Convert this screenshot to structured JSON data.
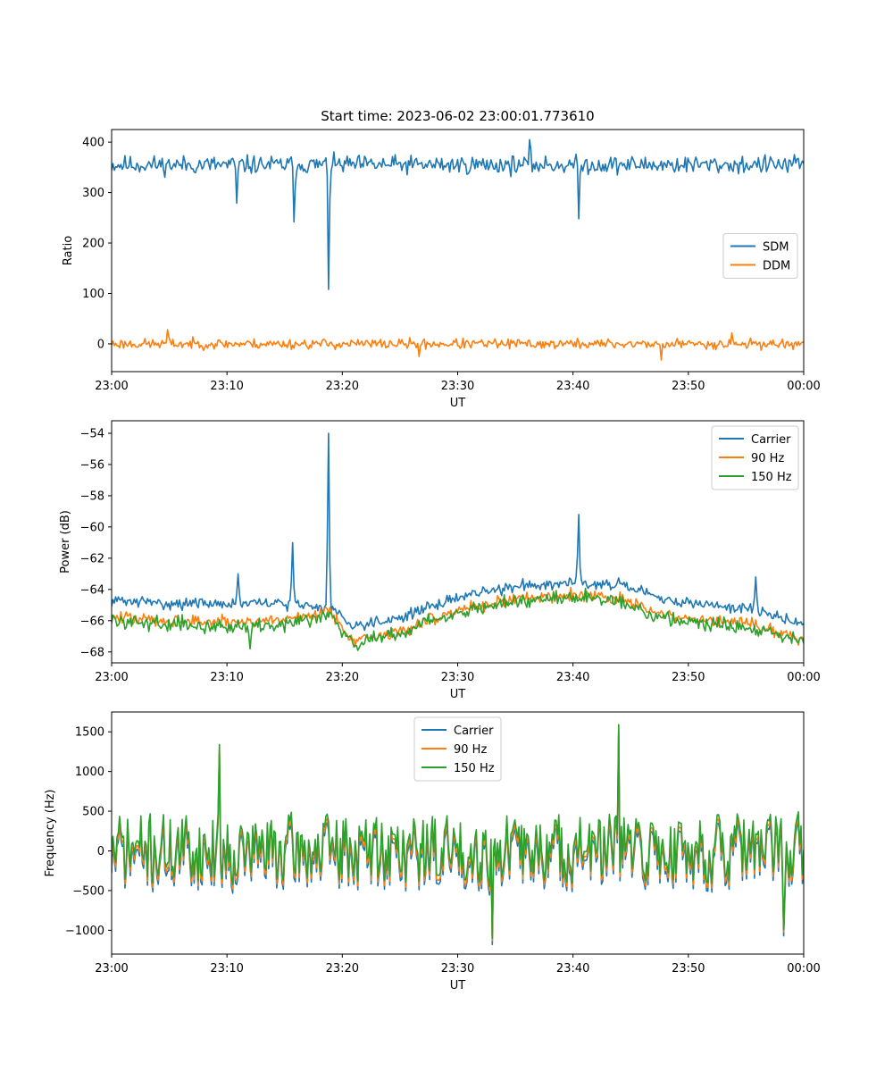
{
  "figure": {
    "title": "Start time: 2023-06-02 23:00:01.773610"
  },
  "colors": {
    "blue": "#1f77b4",
    "orange": "#ff7f0e",
    "green": "#2ca02c",
    "legend_edge": "#cccccc"
  },
  "chart_data": [
    {
      "type": "line",
      "title": "Start time: 2023-06-02 23:00:01.773610",
      "xlabel": "UT",
      "ylabel": "Ratio",
      "x_unit": "minutes after 23:00",
      "xlim": [
        0,
        60
      ],
      "ylim": [
        -55,
        425
      ],
      "x_ticks": [
        0,
        10,
        20,
        30,
        40,
        50,
        60
      ],
      "x_tick_labels": [
        "23:00",
        "23:10",
        "23:20",
        "23:30",
        "23:40",
        "23:50",
        "00:00"
      ],
      "y_ticks": [
        0,
        100,
        200,
        300,
        400
      ],
      "y_tick_labels": [
        "0",
        "100",
        "200",
        "300",
        "400"
      ],
      "legend": "center-right",
      "grid": false,
      "series": [
        {
          "name": "SDM",
          "color": "#1f77b4",
          "baseline": 355,
          "noise": 18,
          "seed": 11,
          "events": [
            {
              "x": 10.9,
              "y": 279
            },
            {
              "x": 15.8,
              "y": 242
            },
            {
              "x": 18.8,
              "y": 108
            },
            {
              "x": 36.2,
              "y": 405
            },
            {
              "x": 40.5,
              "y": 248
            }
          ]
        },
        {
          "name": "DDM",
          "color": "#ff7f0e",
          "baseline": 0,
          "noise": 10,
          "seed": 23,
          "events": [
            {
              "x": 4.8,
              "y": 28
            },
            {
              "x": 26.6,
              "y": -25
            },
            {
              "x": 47.6,
              "y": -32
            },
            {
              "x": 53.8,
              "y": 22
            }
          ]
        }
      ]
    },
    {
      "type": "line",
      "xlabel": "UT",
      "ylabel": "Power (dB)",
      "x_unit": "minutes after 23:00",
      "xlim": [
        0,
        60
      ],
      "ylim": [
        -68.7,
        -53.2
      ],
      "x_ticks": [
        0,
        10,
        20,
        30,
        40,
        50,
        60
      ],
      "x_tick_labels": [
        "23:00",
        "23:10",
        "23:20",
        "23:30",
        "23:40",
        "23:50",
        "00:00"
      ],
      "y_ticks": [
        -68,
        -66,
        -64,
        -62,
        -60,
        -58,
        -56,
        -54
      ],
      "y_tick_labels": [
        "−68",
        "−66",
        "−64",
        "−62",
        "−60",
        "−58",
        "−56",
        "−54"
      ],
      "legend": "top-right",
      "grid": false,
      "series": [
        {
          "name": "Carrier",
          "color": "#1f77b4",
          "noise": 0.35,
          "seed": 31,
          "trend": [
            [
              0,
              -64.7
            ],
            [
              5,
              -64.9
            ],
            [
              10,
              -64.9
            ],
            [
              15,
              -64.9
            ],
            [
              19,
              -65.2
            ],
            [
              21,
              -66.3
            ],
            [
              25,
              -65.8
            ],
            [
              30,
              -64.5
            ],
            [
              35,
              -63.8
            ],
            [
              40,
              -63.5
            ],
            [
              44,
              -63.7
            ],
            [
              48,
              -64.7
            ],
            [
              52,
              -65.0
            ],
            [
              56,
              -65.3
            ],
            [
              60,
              -66.3
            ]
          ],
          "events": [
            {
              "x": 11.0,
              "y": -63.0
            },
            {
              "x": 15.7,
              "y": -61.0
            },
            {
              "x": 18.8,
              "y": -54.0
            },
            {
              "x": 40.5,
              "y": -59.2
            },
            {
              "x": 55.8,
              "y": -63.2
            }
          ]
        },
        {
          "name": "90 Hz",
          "color": "#ff7f0e",
          "noise": 0.4,
          "seed": 47,
          "trend": [
            [
              0,
              -65.8
            ],
            [
              5,
              -66.0
            ],
            [
              10,
              -66.1
            ],
            [
              15,
              -65.9
            ],
            [
              19,
              -65.4
            ],
            [
              21,
              -67.3
            ],
            [
              25,
              -66.7
            ],
            [
              30,
              -65.3
            ],
            [
              35,
              -64.6
            ],
            [
              40,
              -64.3
            ],
            [
              44,
              -64.6
            ],
            [
              48,
              -65.7
            ],
            [
              52,
              -66.0
            ],
            [
              56,
              -66.3
            ],
            [
              60,
              -67.2
            ]
          ],
          "events": []
        },
        {
          "name": "150 Hz",
          "color": "#2ca02c",
          "noise": 0.45,
          "seed": 59,
          "trend": [
            [
              0,
              -66.0
            ],
            [
              5,
              -66.2
            ],
            [
              10,
              -66.4
            ],
            [
              15,
              -66.2
            ],
            [
              19,
              -65.6
            ],
            [
              21,
              -67.4
            ],
            [
              25,
              -66.8
            ],
            [
              30,
              -65.4
            ],
            [
              35,
              -64.8
            ],
            [
              40,
              -64.4
            ],
            [
              44,
              -64.8
            ],
            [
              48,
              -65.9
            ],
            [
              52,
              -66.2
            ],
            [
              56,
              -66.5
            ],
            [
              60,
              -67.3
            ]
          ],
          "events": [
            {
              "x": 12.0,
              "y": -67.8
            },
            {
              "x": 21.3,
              "y": -67.9
            }
          ]
        }
      ]
    },
    {
      "type": "line",
      "xlabel": "UT",
      "ylabel": "Frequency (Hz)",
      "x_unit": "minutes after 23:00",
      "xlim": [
        0,
        60
      ],
      "ylim": [
        -1300,
        1750
      ],
      "x_ticks": [
        0,
        10,
        20,
        30,
        40,
        50,
        60
      ],
      "x_tick_labels": [
        "23:00",
        "23:10",
        "23:20",
        "23:30",
        "23:40",
        "23:50",
        "00:00"
      ],
      "y_ticks": [
        -1000,
        -500,
        0,
        500,
        1000,
        1500
      ],
      "y_tick_labels": [
        "−1000",
        "−500",
        "0",
        "500",
        "1000",
        "1500"
      ],
      "legend": "top-center",
      "grid": false,
      "series": [
        {
          "name": "Carrier",
          "color": "#1f77b4",
          "offset": -80,
          "seed": 71,
          "noise": 420,
          "events": [
            {
              "x": 9.4,
              "y": 1250
            },
            {
              "x": 33.0,
              "y": -1180
            },
            {
              "x": 44.0,
              "y": 1500
            },
            {
              "x": 58.3,
              "y": -1070
            }
          ]
        },
        {
          "name": "90 Hz",
          "color": "#ff7f0e",
          "offset": -30,
          "seed": 71,
          "noise": 420,
          "events": [
            {
              "x": 9.4,
              "y": 1300
            },
            {
              "x": 33.0,
              "y": -1130
            },
            {
              "x": 44.0,
              "y": 1550
            },
            {
              "x": 58.3,
              "y": -1020
            }
          ]
        },
        {
          "name": "150 Hz",
          "color": "#2ca02c",
          "offset": 30,
          "seed": 71,
          "noise": 420,
          "events": [
            {
              "x": 9.4,
              "y": 1340
            },
            {
              "x": 33.0,
              "y": -1100
            },
            {
              "x": 44.0,
              "y": 1590
            },
            {
              "x": 58.3,
              "y": -990
            }
          ]
        }
      ]
    }
  ]
}
